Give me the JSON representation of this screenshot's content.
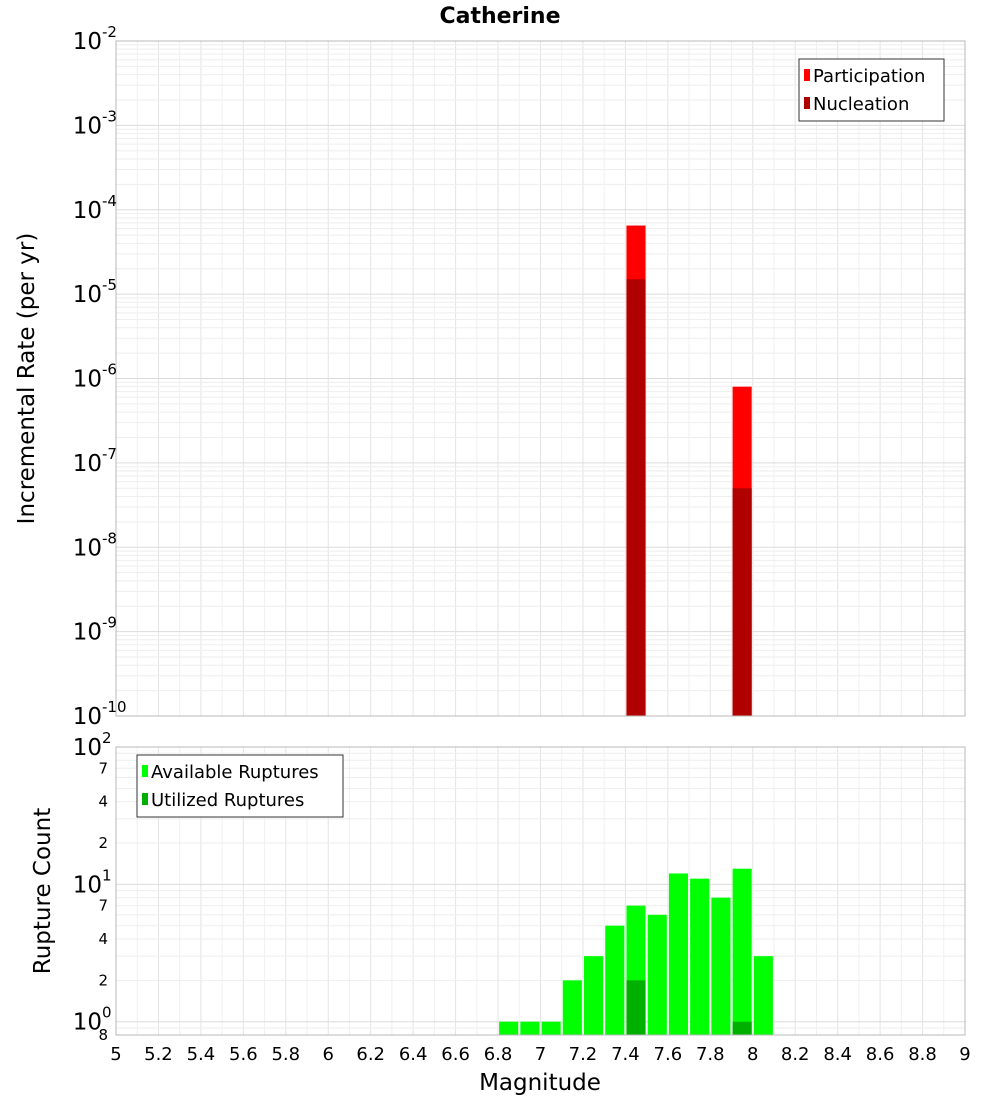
{
  "chart_data": [
    {
      "type": "bar",
      "title": "Catherine",
      "xlabel": "",
      "ylabel": "Incremental Rate (per yr)",
      "yscale": "log",
      "xlim": [
        5,
        9
      ],
      "ylim": [
        1e-10,
        0.01
      ],
      "y_ticks": [
        {
          "base": "10",
          "exp": "-10",
          "value": 1e-10
        },
        {
          "base": "10",
          "exp": "-9",
          "value": 1e-09
        },
        {
          "base": "10",
          "exp": "-8",
          "value": 1e-08
        },
        {
          "base": "10",
          "exp": "-7",
          "value": 1e-07
        },
        {
          "base": "10",
          "exp": "-6",
          "value": 1e-06
        },
        {
          "base": "10",
          "exp": "-5",
          "value": 1e-05
        },
        {
          "base": "10",
          "exp": "-4",
          "value": 0.0001
        },
        {
          "base": "10",
          "exp": "-3",
          "value": 0.001
        },
        {
          "base": "10",
          "exp": "-2",
          "value": 0.01
        }
      ],
      "grid": true,
      "legend_position": "top-right",
      "bar_width": 0.09,
      "series": [
        {
          "name": "Participation",
          "color": "#ff0000",
          "x": [
            7.45,
            7.95
          ],
          "values": [
            6.5e-05,
            8e-07
          ]
        },
        {
          "name": "Nucleation",
          "color": "#b00000",
          "x": [
            7.45,
            7.95
          ],
          "values": [
            1.5e-05,
            5e-08
          ]
        }
      ]
    },
    {
      "type": "bar",
      "title": "",
      "xlabel": "Magnitude",
      "ylabel": "Rupture Count",
      "yscale": "log",
      "xlim": [
        5,
        9
      ],
      "ylim": [
        0.8,
        100
      ],
      "x_ticks": [
        "5",
        "5.2",
        "5.4",
        "5.6",
        "5.8",
        "6",
        "6.2",
        "6.4",
        "6.6",
        "6.8",
        "7",
        "7.2",
        "7.4",
        "7.6",
        "7.8",
        "8",
        "8.2",
        "8.4",
        "8.6",
        "8.8",
        "9"
      ],
      "y_major_ticks": [
        {
          "base": "10",
          "exp": "0",
          "value": 1
        },
        {
          "base": "10",
          "exp": "1",
          "value": 10
        },
        {
          "base": "10",
          "exp": "2",
          "value": 100
        }
      ],
      "y_minor_ticks": [
        {
          "label": "8",
          "value": 0.8
        },
        {
          "label": "2",
          "value": 2
        },
        {
          "label": "4",
          "value": 4
        },
        {
          "label": "7",
          "value": 7
        },
        {
          "label": "2",
          "value": 20
        },
        {
          "label": "4",
          "value": 40
        },
        {
          "label": "7",
          "value": 70
        }
      ],
      "grid": true,
      "legend_position": "top-left",
      "bar_width": 0.09,
      "series": [
        {
          "name": "Available Ruptures",
          "color": "#00ff00",
          "x": [
            6.85,
            6.95,
            7.05,
            7.15,
            7.25,
            7.35,
            7.45,
            7.55,
            7.65,
            7.75,
            7.85,
            7.95,
            8.05
          ],
          "values": [
            1,
            1,
            1,
            2,
            3,
            5,
            7,
            6,
            12,
            11,
            8,
            13,
            3
          ]
        },
        {
          "name": "Utilized Ruptures",
          "color": "#00b000",
          "x": [
            7.45,
            7.95
          ],
          "values": [
            2,
            1
          ]
        }
      ]
    }
  ]
}
